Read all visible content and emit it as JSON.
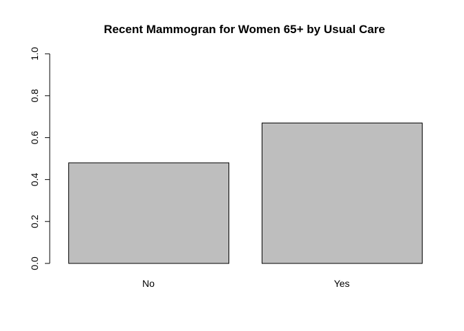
{
  "chart_data": {
    "type": "bar",
    "title": "Recent Mammogran for Women 65+ by Usual Care",
    "categories": [
      "No",
      "Yes"
    ],
    "values": [
      0.48,
      0.67
    ],
    "xlabel": "",
    "ylabel": "",
    "ylim": [
      0,
      1
    ],
    "yticks": [
      "0.0",
      "0.2",
      "0.4",
      "0.6",
      "0.8",
      "1.0"
    ],
    "bar_color": "#bebebe",
    "grid": false
  }
}
